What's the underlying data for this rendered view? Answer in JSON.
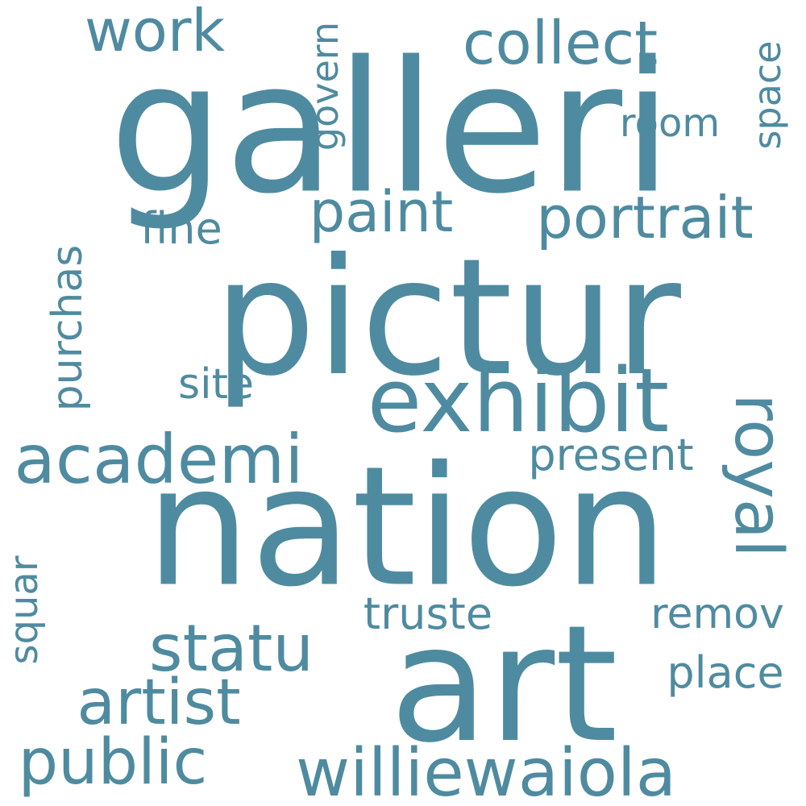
{
  "cloud": {
    "color": "#4f8ba0",
    "words": {
      "galleri": "galleri",
      "pictur": "pictur",
      "nation": "nation",
      "art": "art",
      "exhibit": "exhibit",
      "williewaiola": "williewaiola",
      "academi": "academi",
      "portrait": "portrait",
      "collect": "collect",
      "paint": "paint",
      "statu": "statu",
      "artist": "artist",
      "public": "public",
      "royal": "royal",
      "work": "work",
      "present": "present",
      "truste": "truste",
      "place": "place",
      "remov": "remov",
      "fine": "fine",
      "room": "room",
      "site": "site",
      "purchas": "purchas",
      "govern": "govern",
      "space": "space",
      "squar": "squar"
    }
  }
}
